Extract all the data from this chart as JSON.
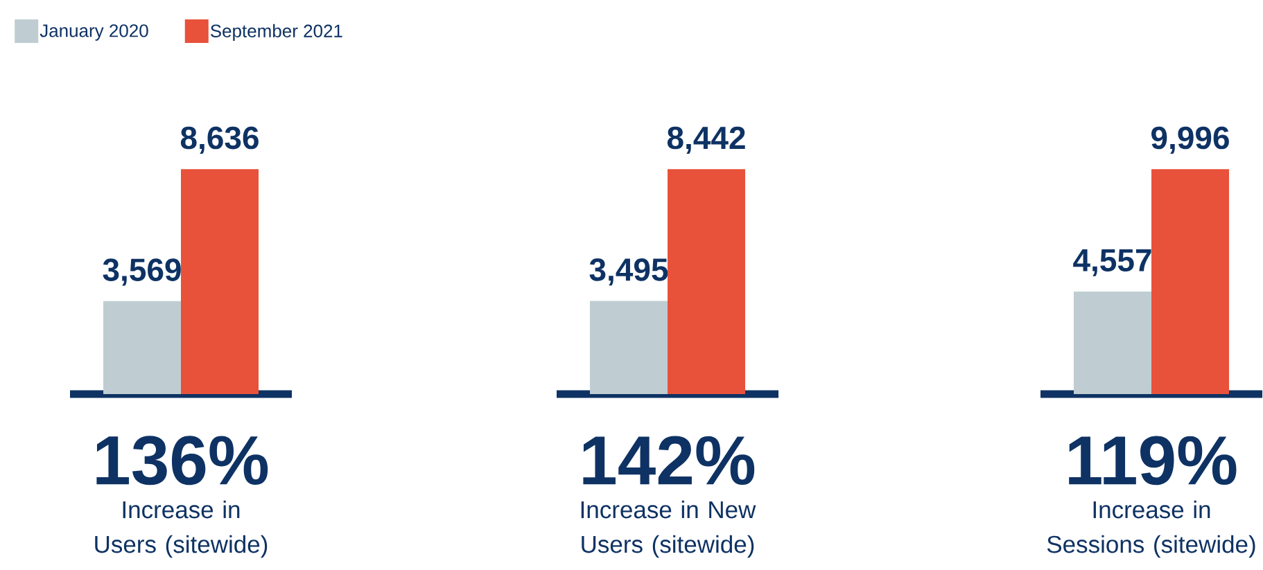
{
  "chart_data": [
    {
      "type": "bar",
      "categories": [
        null
      ],
      "series": [
        {
          "name": "January 2020",
          "color": "#bfcdd2",
          "values": [
            3569
          ],
          "value_labels": [
            "3,569"
          ]
        },
        {
          "name": "September 2021",
          "color": "#e8513a",
          "values": [
            8636
          ],
          "value_labels": [
            "8,636"
          ]
        }
      ],
      "legend": "top left",
      "xlabel": "Increase in Users (sitewide)",
      "annotations": [
        "136%"
      ]
    },
    {
      "type": "bar",
      "categories": [
        null
      ],
      "series": [
        {
          "color": "#bfcdd2",
          "values": [
            3495
          ],
          "value_labels": [
            "3,495"
          ]
        },
        {
          "color": "#e8513a",
          "values": [
            8442
          ],
          "value_labels": [
            "8,442"
          ]
        }
      ],
      "xlabel": "Increase in New Users (sitewide)",
      "annotations": [
        "142%"
      ]
    },
    {
      "type": "bar",
      "categories": [
        null
      ],
      "series": [
        {
          "color": "#bfcdd2",
          "values": [
            4557
          ],
          "value_labels": [
            "4,557"
          ]
        },
        {
          "color": "#e8513a",
          "values": [
            9996
          ],
          "value_labels": [
            "9,996"
          ]
        }
      ],
      "xlabel": "Increase in Sessions (sitewide)",
      "annotations": [
        "119%"
      ]
    }
  ]
}
